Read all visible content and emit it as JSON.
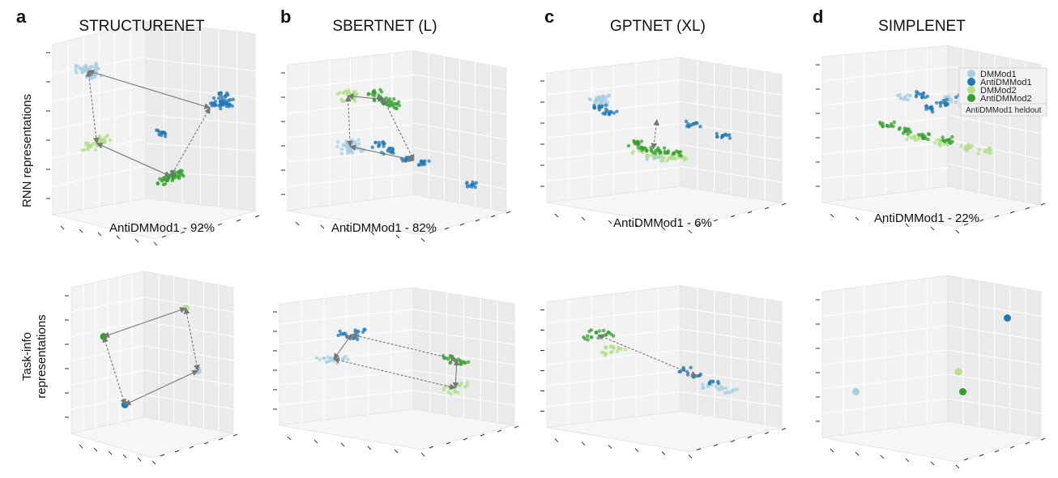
{
  "figure": {
    "panel_letters": [
      "a",
      "b",
      "c",
      "d"
    ],
    "row_labels": {
      "rnn": "RNN representations",
      "task_info_line1": "Task-info",
      "task_info_line2": "representations"
    }
  },
  "legend": {
    "entries": [
      "DMMod1",
      "AntiDMMod1",
      "DMMod2",
      "AntiDMMod2"
    ],
    "note": "AntiDMMod1 heldout",
    "colors": [
      "#a6cee3",
      "#1f78b4",
      "#b2df8a",
      "#33a02c"
    ]
  },
  "chart_data": [
    {
      "type": "scatter",
      "subtype": "3d-scatter",
      "title": "STRUCTURENET",
      "row": "RNN representations",
      "annotation": "AntiDMMod1 - 92%",
      "grid": true,
      "series": [
        {
          "name": "DMMod1",
          "color": "#a6cee3",
          "points": [
            [
              -0.85,
              0.8
            ],
            [
              -0.78,
              0.85
            ],
            [
              -0.72,
              0.78
            ],
            [
              -0.8,
              0.72
            ],
            [
              -0.9,
              0.82
            ]
          ]
        },
        {
          "name": "AntiDMMod1",
          "color": "#1f78b4",
          "points": [
            [
              0.82,
              0.35
            ],
            [
              0.88,
              0.42
            ],
            [
              0.76,
              0.3
            ],
            [
              0.9,
              0.32
            ],
            [
              0.1,
              -0.1
            ]
          ]
        },
        {
          "name": "DMMod2",
          "color": "#b2df8a",
          "points": [
            [
              -0.72,
              -0.25
            ],
            [
              -0.62,
              -0.2
            ],
            [
              -0.8,
              -0.3
            ],
            [
              -0.68,
              -0.28
            ]
          ]
        },
        {
          "name": "AntiDMMod2",
          "color": "#33a02c",
          "points": [
            [
              0.18,
              -0.75
            ],
            [
              0.25,
              -0.72
            ],
            [
              0.1,
              -0.8
            ],
            [
              0.3,
              -0.68
            ]
          ]
        }
      ]
    },
    {
      "type": "scatter",
      "subtype": "3d-scatter",
      "title": "SBERTNET (L)",
      "row": "RNN representations",
      "annotation": "AntiDMMod1 - 82%",
      "grid": true,
      "series": [
        {
          "name": "DMMod1",
          "color": "#a6cee3",
          "points": [
            [
              -0.6,
              -0.2
            ],
            [
              -0.5,
              -0.15
            ],
            [
              -0.55,
              -0.3
            ],
            [
              -0.45,
              -0.25
            ]
          ]
        },
        {
          "name": "AntiDMMod1",
          "color": "#1f78b4",
          "points": [
            [
              -0.2,
              -0.2
            ],
            [
              -0.1,
              -0.3
            ],
            [
              0.1,
              -0.45
            ],
            [
              0.3,
              -0.5
            ],
            [
              0.85,
              -0.9
            ]
          ]
        },
        {
          "name": "DMMod2",
          "color": "#b2df8a",
          "points": [
            [
              -0.6,
              0.72
            ],
            [
              -0.5,
              0.68
            ],
            [
              -0.55,
              0.6
            ]
          ]
        },
        {
          "name": "AntiDMMod2",
          "color": "#33a02c",
          "points": [
            [
              -0.25,
              0.72
            ],
            [
              -0.1,
              0.58
            ],
            [
              -0.05,
              0.5
            ],
            [
              -0.2,
              0.62
            ]
          ]
        }
      ]
    },
    {
      "type": "scatter",
      "subtype": "3d-scatter",
      "title": "GPTNET (XL)",
      "row": "RNN representations",
      "annotation": "AntiDMMod1 - 6%",
      "grid": true,
      "series": [
        {
          "name": "DMMod1",
          "color": "#a6cee3",
          "points": [
            [
              -0.7,
              0.7
            ],
            [
              -0.6,
              0.75
            ],
            [
              -0.65,
              0.62
            ],
            [
              -0.1,
              -0.5
            ]
          ]
        },
        {
          "name": "AntiDMMod1",
          "color": "#1f78b4",
          "points": [
            [
              -0.65,
              0.55
            ],
            [
              -0.55,
              0.45
            ],
            [
              0.3,
              0.2
            ],
            [
              0.6,
              -0.05
            ]
          ]
        },
        {
          "name": "DMMod2",
          "color": "#b2df8a",
          "points": [
            [
              -0.1,
              -0.45
            ],
            [
              0.05,
              -0.5
            ],
            [
              -0.25,
              -0.35
            ],
            [
              0.15,
              -0.48
            ]
          ]
        },
        {
          "name": "AntiDMMod2",
          "color": "#33a02c",
          "points": [
            [
              -0.2,
              -0.3
            ],
            [
              -0.05,
              -0.35
            ],
            [
              0.1,
              -0.4
            ],
            [
              -0.3,
              -0.2
            ]
          ]
        }
      ]
    },
    {
      "type": "scatter",
      "subtype": "3d-scatter",
      "title": "SIMPLENET",
      "row": "RNN representations",
      "annotation": "AntiDMMod1 - 22%",
      "grid": true,
      "legend_position": "top-right",
      "series": [
        {
          "name": "DMMod1",
          "color": "#a6cee3",
          "points": [
            [
              -0.3,
              0.5
            ],
            [
              0.2,
              0.45
            ],
            [
              0.5,
              0.35
            ],
            [
              0.7,
              0.3
            ]
          ]
        },
        {
          "name": "AntiDMMod1",
          "color": "#1f78b4",
          "points": [
            [
              -0.1,
              0.55
            ],
            [
              0.1,
              0.4
            ],
            [
              0.35,
              0.5
            ],
            [
              0.0,
              0.3
            ]
          ]
        },
        {
          "name": "DMMod2",
          "color": "#b2df8a",
          "points": [
            [
              0.1,
              -0.3
            ],
            [
              0.4,
              -0.4
            ],
            [
              0.6,
              -0.45
            ],
            [
              -0.2,
              -0.2
            ]
          ]
        },
        {
          "name": "AntiDMMod2",
          "color": "#33a02c",
          "points": [
            [
              -0.3,
              -0.1
            ],
            [
              -0.1,
              -0.2
            ],
            [
              0.2,
              -0.25
            ],
            [
              -0.5,
              0.0
            ]
          ]
        }
      ]
    },
    {
      "type": "scatter",
      "subtype": "3d-scatter",
      "title": "",
      "row": "Task-info representations",
      "grid": true,
      "series": [
        {
          "name": "DMMod1",
          "color": "#a6cee3",
          "points": [
            [
              0.75,
              -0.25
            ]
          ]
        },
        {
          "name": "AntiDMMod1",
          "color": "#1f78b4",
          "points": [
            [
              -0.45,
              -0.85
            ]
          ]
        },
        {
          "name": "DMMod2",
          "color": "#b2df8a",
          "points": [
            [
              0.55,
              0.85
            ]
          ]
        },
        {
          "name": "AntiDMMod2",
          "color": "#33a02c",
          "points": [
            [
              -0.8,
              0.35
            ]
          ]
        }
      ]
    },
    {
      "type": "scatter",
      "subtype": "3d-scatter",
      "title": "",
      "row": "Task-info representations",
      "grid": true,
      "series": [
        {
          "name": "DMMod1",
          "color": "#a6cee3",
          "points": [
            [
              -0.75,
              0.05
            ],
            [
              -0.65,
              0.0
            ],
            [
              -0.55,
              0.05
            ]
          ]
        },
        {
          "name": "AntiDMMod1",
          "color": "#1f78b4",
          "points": [
            [
              -0.55,
              0.6
            ],
            [
              -0.45,
              0.5
            ],
            [
              -0.4,
              0.65
            ]
          ]
        },
        {
          "name": "DMMod2",
          "color": "#b2df8a",
          "points": [
            [
              0.55,
              -0.6
            ],
            [
              0.65,
              -0.55
            ],
            [
              0.6,
              -0.7
            ]
          ]
        },
        {
          "name": "AntiDMMod2",
          "color": "#33a02c",
          "points": [
            [
              0.6,
              0.0
            ],
            [
              0.7,
              -0.05
            ],
            [
              0.55,
              0.1
            ]
          ]
        }
      ]
    },
    {
      "type": "scatter",
      "subtype": "3d-scatter",
      "title": "",
      "row": "Task-info representations",
      "grid": true,
      "series": [
        {
          "name": "DMMod1",
          "color": "#a6cee3",
          "points": [
            [
              0.45,
              -0.55
            ],
            [
              0.6,
              -0.6
            ],
            [
              0.7,
              -0.65
            ]
          ]
        },
        {
          "name": "AntiDMMod1",
          "color": "#1f78b4",
          "points": [
            [
              0.3,
              -0.35
            ],
            [
              0.5,
              -0.45
            ],
            [
              0.2,
              -0.2
            ]
          ]
        },
        {
          "name": "DMMod2",
          "color": "#b2df8a",
          "points": [
            [
              -0.55,
              0.3
            ],
            [
              -0.45,
              0.25
            ],
            [
              -0.6,
              0.15
            ]
          ]
        },
        {
          "name": "AntiDMMod2",
          "color": "#33a02c",
          "points": [
            [
              -0.7,
              0.6
            ],
            [
              -0.6,
              0.55
            ],
            [
              -0.75,
              0.5
            ]
          ]
        }
      ]
    },
    {
      "type": "scatter",
      "subtype": "3d-scatter",
      "title": "",
      "row": "Task-info representations",
      "grid": true,
      "series": [
        {
          "name": "DMMod1",
          "color": "#a6cee3",
          "points": [
            [
              -0.85,
              -0.55
            ]
          ]
        },
        {
          "name": "AntiDMMod1",
          "color": "#1f78b4",
          "points": [
            [
              0.85,
              0.75
            ]
          ]
        },
        {
          "name": "DMMod2",
          "color": "#b2df8a",
          "points": [
            [
              0.3,
              -0.2
            ]
          ]
        },
        {
          "name": "AntiDMMod2",
          "color": "#33a02c",
          "points": [
            [
              0.35,
              -0.55
            ]
          ]
        }
      ]
    }
  ]
}
